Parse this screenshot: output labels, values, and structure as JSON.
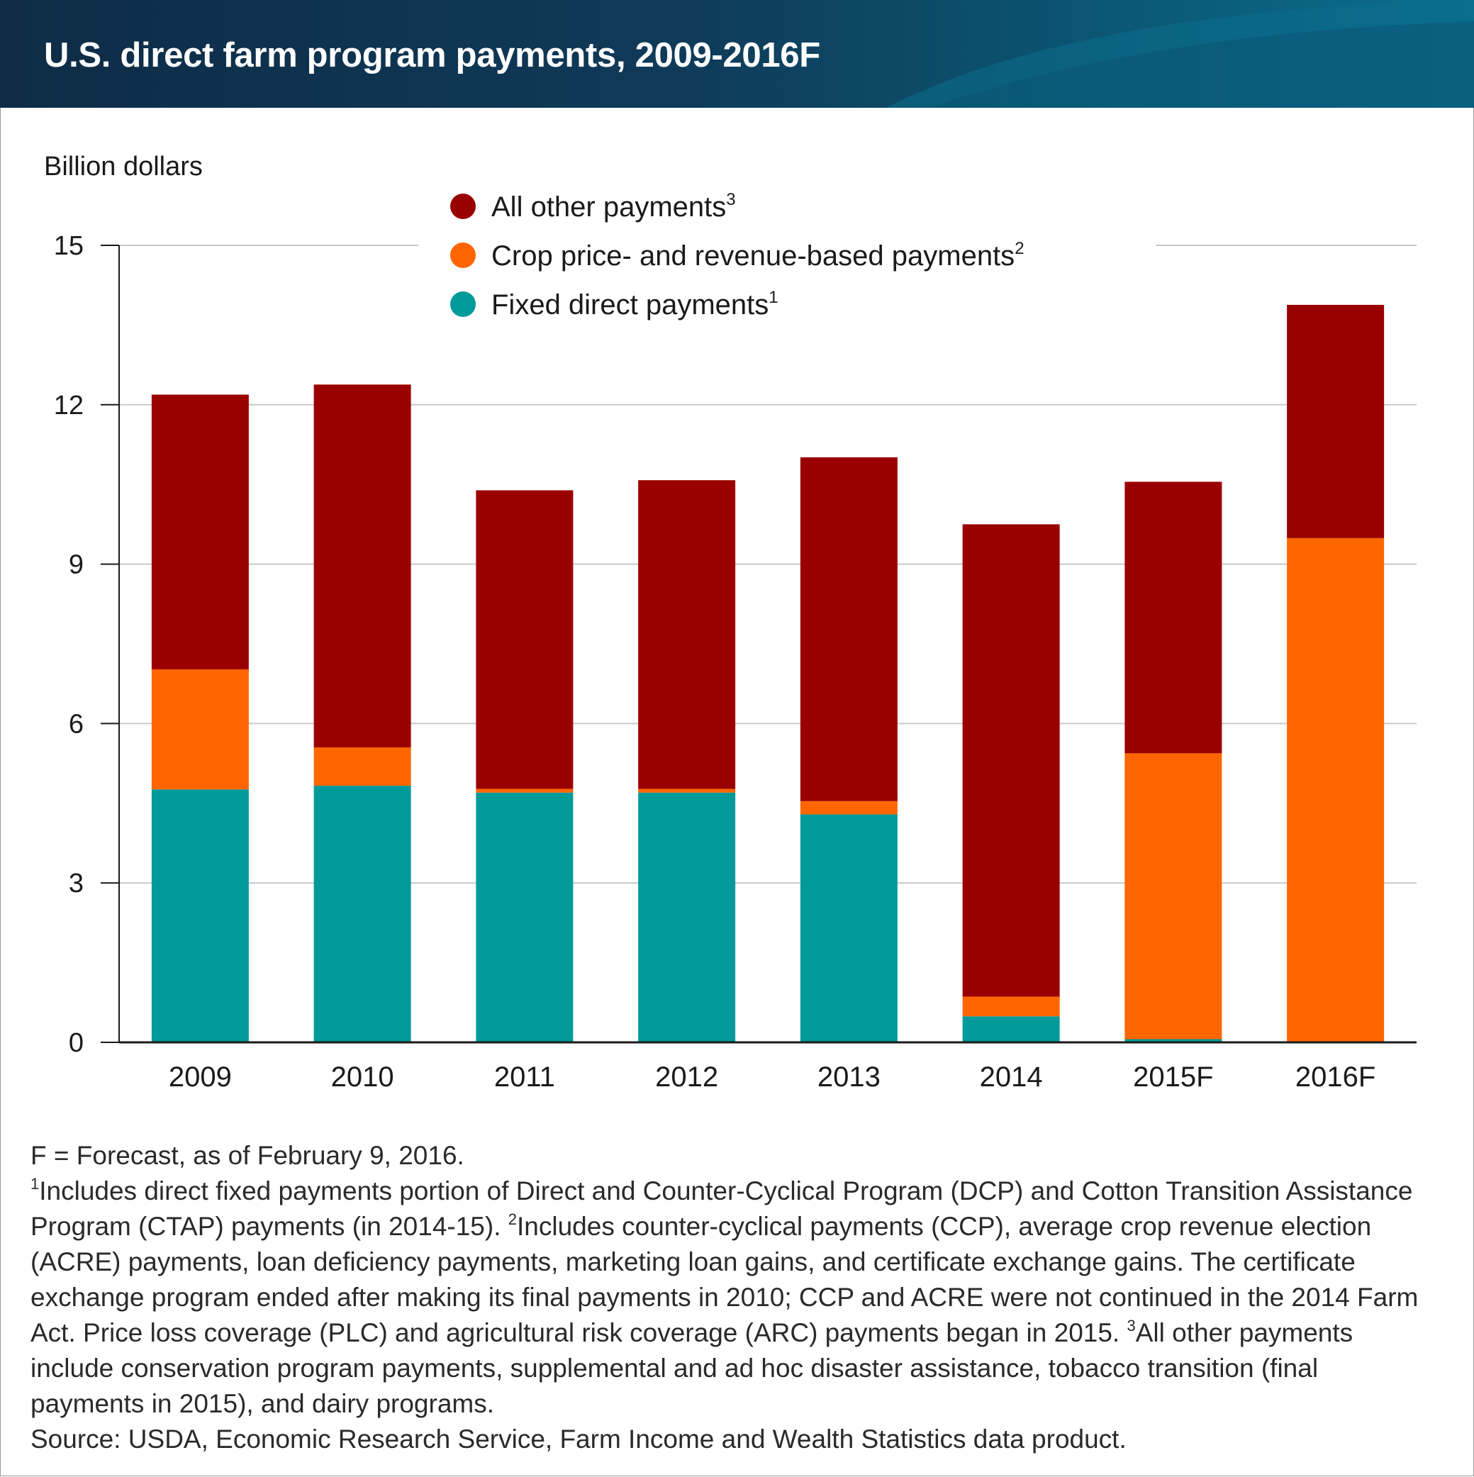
{
  "title": "U.S. direct farm program payments, 2009-2016F",
  "colors": {
    "all_other": "#9b0000",
    "crop_price": "#ff6600",
    "fixed_direct": "#009a9a",
    "header_bg": "#0f3a58"
  },
  "chart_data": {
    "type": "bar",
    "stacked": true,
    "ylabel": "Billion dollars",
    "xlabel": "",
    "ylim": [
      0,
      15
    ],
    "yticks": [
      0,
      3,
      6,
      9,
      12,
      15
    ],
    "grid": true,
    "legend_position": "top-center",
    "categories": [
      "2009",
      "2010",
      "2011",
      "2012",
      "2013",
      "2014",
      "2015F",
      "2016F"
    ],
    "series": [
      {
        "key": "fixed",
        "name": "Fixed direct payments",
        "sup": "1",
        "color": "#009a9a",
        "values": [
          4.76,
          4.83,
          4.7,
          4.7,
          4.29,
          0.49,
          0.06,
          0.0
        ]
      },
      {
        "key": "crop",
        "name": "Crop price- and revenue-based payments",
        "sup": "2",
        "color": "#ff6600",
        "values": [
          2.26,
          0.72,
          0.07,
          0.07,
          0.25,
          0.37,
          5.38,
          9.49
        ]
      },
      {
        "key": "other",
        "name": "All other payments",
        "sup": "3",
        "color": "#9b0000",
        "values": [
          5.17,
          6.83,
          5.62,
          5.81,
          6.47,
          8.89,
          5.11,
          4.39
        ]
      }
    ],
    "legend_order": [
      "other",
      "crop",
      "fixed"
    ]
  },
  "notes": {
    "forecast": "F = Forecast, as of February 9, 2016.",
    "sup1": "1",
    "note1": "Includes direct fixed payments portion of Direct and Counter-Cyclical Program (DCP) and Cotton Transition Assistance Program (CTAP) payments (in 2014-15). ",
    "sup2": "2",
    "note2": "Includes counter-cyclical payments (CCP), average crop revenue election (ACRE) payments, loan deficiency payments, marketing loan gains, and certificate exchange gains. The certificate exchange program ended after making its final payments in 2010; CCP and ACRE were not continued in the 2014 Farm Act. Price loss coverage (PLC) and agricultural risk coverage (ARC) payments began in 2015. ",
    "sup3": "3",
    "note3": "All other payments include conservation program payments, supplemental and ad hoc disaster assistance, tobacco transition (final payments in 2015), and dairy programs.",
    "source": "Source: USDA, Economic Research Service, Farm Income and Wealth Statistics data product."
  }
}
